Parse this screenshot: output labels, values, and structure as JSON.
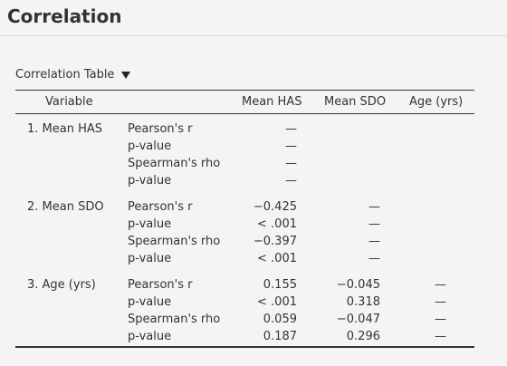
{
  "page": {
    "title": "Correlation"
  },
  "table": {
    "title": "Correlation Table",
    "columns": [
      "Variable",
      "Mean HAS",
      "Mean SDO",
      "Age (yrs)"
    ],
    "groups": [
      {
        "variable": "1. Mean HAS",
        "rows": [
          {
            "stat": "Pearson's r",
            "values": [
              "—",
              "",
              ""
            ]
          },
          {
            "stat": "p-value",
            "values": [
              "—",
              "",
              ""
            ]
          },
          {
            "stat": "Spearman's rho",
            "values": [
              "—",
              "",
              ""
            ]
          },
          {
            "stat": "p-value",
            "values": [
              "—",
              "",
              ""
            ]
          }
        ]
      },
      {
        "variable": "2. Mean SDO",
        "rows": [
          {
            "stat": "Pearson's r",
            "values": [
              "−0.425",
              "—",
              ""
            ]
          },
          {
            "stat": "p-value",
            "values": [
              "< .001",
              "—",
              ""
            ]
          },
          {
            "stat": "Spearman's rho",
            "values": [
              "−0.397",
              "—",
              ""
            ]
          },
          {
            "stat": "p-value",
            "values": [
              "< .001",
              "—",
              ""
            ]
          }
        ]
      },
      {
        "variable": "3. Age (yrs)",
        "rows": [
          {
            "stat": "Pearson's r",
            "values": [
              "0.155",
              "−0.045",
              "—"
            ]
          },
          {
            "stat": "p-value",
            "values": [
              "< .001",
              "0.318",
              "—"
            ]
          },
          {
            "stat": "Spearman's rho",
            "values": [
              "0.059",
              "−0.047",
              "—"
            ]
          },
          {
            "stat": "p-value",
            "values": [
              "0.187",
              "0.296",
              "—"
            ]
          }
        ]
      }
    ]
  }
}
